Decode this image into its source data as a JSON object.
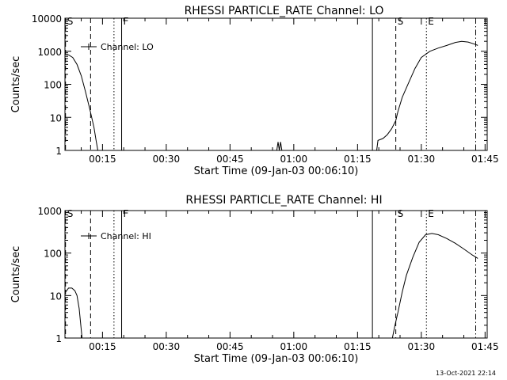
{
  "chart_data": [
    {
      "type": "line",
      "title": "RHESSI PARTICLE_RATE Channel: LO",
      "xlabel": "Start Time (09-Jan-03 00:06:10)",
      "ylabel": "Counts/sec",
      "yscale": "log",
      "ylim": [
        1,
        10000
      ],
      "xlim_minutes": [
        6.17,
        105.5
      ],
      "xtick_labels": [
        "00:15",
        "00:30",
        "00:45",
        "01:00",
        "01:15",
        "01:30",
        "01:45"
      ],
      "xtick_minutes": [
        15,
        30,
        45,
        60,
        75,
        90,
        105
      ],
      "ytick_labels": [
        "1",
        "10",
        "100",
        "1000",
        "10000"
      ],
      "ytick_values": [
        1,
        10,
        100,
        1000,
        10000
      ],
      "legend": {
        "label": "Channel: LO",
        "position": "top-left"
      },
      "markers": [
        {
          "label": "S",
          "minute": 6.3,
          "style": "dashed"
        },
        {
          "label": "F",
          "minute": 19.5,
          "style": "solid"
        },
        {
          "label": "S",
          "minute": 84.0,
          "style": "dashed"
        },
        {
          "label": "E",
          "minute": 91.2,
          "style": "dotted"
        }
      ],
      "unlabeled_lines": [
        {
          "minute": 12.2,
          "style": "dashed"
        },
        {
          "minute": 17.7,
          "style": "dotted"
        },
        {
          "minute": 78.5,
          "style": "solid"
        },
        {
          "minute": 102.8,
          "style": "dashdot"
        }
      ],
      "series": [
        {
          "segments": [
            [
              [
                6.3,
                800
              ],
              [
                7.0,
                780
              ],
              [
                8.0,
                650
              ],
              [
                9.0,
                400
              ],
              [
                10.0,
                180
              ],
              [
                11.0,
                60
              ],
              [
                12.0,
                18
              ],
              [
                13.0,
                5
              ],
              [
                13.5,
                2
              ],
              [
                13.9,
                1
              ]
            ],
            [
              [
                56.0,
                1
              ],
              [
                56.3,
                1.8
              ],
              [
                56.6,
                1
              ],
              [
                56.9,
                1.8
              ],
              [
                57.2,
                1
              ]
            ],
            [
              [
                79.5,
                1
              ],
              [
                79.8,
                2
              ],
              [
                81.0,
                2.3
              ],
              [
                82.0,
                3
              ],
              [
                83.0,
                4.5
              ],
              [
                84.0,
                8
              ],
              [
                84.5,
                15
              ],
              [
                85.5,
                40
              ],
              [
                87.0,
                110
              ],
              [
                88.5,
                300
              ],
              [
                90.0,
                650
              ],
              [
                92.0,
                1000
              ],
              [
                94.0,
                1250
              ],
              [
                96.0,
                1500
              ],
              [
                98.0,
                1850
              ],
              [
                99.5,
                2000
              ],
              [
                101.0,
                1900
              ],
              [
                102.5,
                1650
              ],
              [
                103.3,
                1500
              ]
            ]
          ]
        }
      ]
    },
    {
      "type": "line",
      "title": "RHESSI PARTICLE_RATE Channel: HI",
      "xlabel": "Start Time (09-Jan-03 00:06:10)",
      "ylabel": "Counts/sec",
      "yscale": "log",
      "ylim": [
        1,
        1000
      ],
      "xlim_minutes": [
        6.17,
        105.5
      ],
      "xtick_labels": [
        "00:15",
        "00:30",
        "00:45",
        "01:00",
        "01:15",
        "01:30",
        "01:45"
      ],
      "xtick_minutes": [
        15,
        30,
        45,
        60,
        75,
        90,
        105
      ],
      "ytick_labels": [
        "1",
        "10",
        "100",
        "1000"
      ],
      "ytick_values": [
        1,
        10,
        100,
        1000
      ],
      "legend": {
        "label": "Channel: HI",
        "position": "top-left"
      },
      "markers": [
        {
          "label": "S",
          "minute": 6.3,
          "style": "dashed"
        },
        {
          "label": "F",
          "minute": 19.5,
          "style": "solid"
        },
        {
          "label": "S",
          "minute": 84.0,
          "style": "dashed"
        },
        {
          "label": "E",
          "minute": 91.2,
          "style": "dotted"
        }
      ],
      "unlabeled_lines": [
        {
          "minute": 12.2,
          "style": "dashed"
        },
        {
          "minute": 17.7,
          "style": "dotted"
        },
        {
          "minute": 78.5,
          "style": "solid"
        },
        {
          "minute": 102.8,
          "style": "dashdot"
        }
      ],
      "series": [
        {
          "segments": [
            [
              [
                6.3,
                12
              ],
              [
                7.0,
                15
              ],
              [
                7.8,
                15
              ],
              [
                8.5,
                13
              ],
              [
                9.0,
                10
              ],
              [
                9.5,
                5
              ],
              [
                9.9,
                2
              ],
              [
                10.2,
                1
              ]
            ],
            [
              [
                83.2,
                1
              ],
              [
                83.8,
                2
              ],
              [
                84.5,
                4
              ],
              [
                85.5,
                12
              ],
              [
                86.5,
                30
              ],
              [
                88.0,
                80
              ],
              [
                89.5,
                180
              ],
              [
                91.0,
                270
              ],
              [
                92.5,
                290
              ],
              [
                94.0,
                270
              ],
              [
                96.0,
                220
              ],
              [
                98.0,
                170
              ],
              [
                100.0,
                125
              ],
              [
                102.0,
                90
              ],
              [
                103.3,
                75
              ]
            ]
          ]
        }
      ]
    }
  ],
  "footer": {
    "timestamp": "13-Oct-2021 22:14"
  }
}
